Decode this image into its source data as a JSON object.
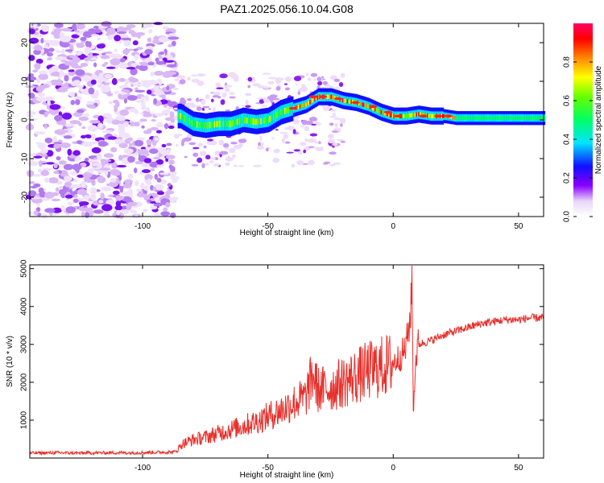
{
  "title": "PAZ1.2025.056.10.04.G08",
  "chart_data": [
    {
      "type": "heatmap",
      "xlabel": "Height of straight line (km)",
      "ylabel": "Frequency (Hz)",
      "xlim": [
        -145,
        60
      ],
      "ylim": [
        -25,
        25
      ],
      "xticks": [
        -100,
        -50,
        0,
        50
      ],
      "yticks": [
        -20,
        -10,
        0,
        10,
        20
      ],
      "colorbar": {
        "label": "Normalized spectral amplitude",
        "range": [
          0,
          1
        ],
        "ticks": [
          "0.0",
          "0.2",
          "0.4",
          "0.6",
          "0.8"
        ],
        "colormap": "rainbow (white-violet-blue-cyan-green-yellow-orange-red-magenta)"
      },
      "dominant_ridge": {
        "x": [
          -85,
          -80,
          -75,
          -70,
          -65,
          -60,
          -55,
          -50,
          -45,
          -40,
          -35,
          -30,
          -25,
          -20,
          -15,
          -10,
          -5,
          0,
          5,
          10,
          15,
          20,
          25,
          30,
          35,
          40,
          45,
          50,
          55,
          60
        ],
        "frequency": [
          1,
          -1,
          -1.5,
          -1,
          -1,
          0,
          -0.5,
          0,
          2,
          3,
          4,
          6,
          6,
          5,
          4.5,
          3.5,
          2,
          1,
          1,
          1.5,
          1,
          1,
          0.5,
          0.5,
          0.5,
          0.5,
          0.5,
          0.5,
          0.5,
          0.5
        ]
      },
      "noise_region_x": [
        -145,
        -87
      ]
    },
    {
      "type": "line",
      "xlabel": "Height of straight line (km)",
      "ylabel": "SNR (10 * v/v)",
      "xlim": [
        -145,
        60
      ],
      "ylim": [
        0,
        5100
      ],
      "xticks": [
        -100,
        -50,
        0,
        50
      ],
      "yticks": [
        1000,
        2000,
        3000,
        4000,
        5000
      ],
      "color": "#e8302c",
      "x": [
        -145,
        -135,
        -125,
        -115,
        -105,
        -95,
        -87,
        -84,
        -80,
        -75,
        -70,
        -65,
        -60,
        -55,
        -50,
        -45,
        -40,
        -35,
        -32,
        -30,
        -25,
        -20,
        -15,
        -10,
        -5,
        0,
        3,
        5,
        7,
        7.5,
        8,
        9,
        10,
        15,
        20,
        25,
        30,
        35,
        40,
        45,
        50,
        55,
        60
      ],
      "y": [
        130,
        140,
        130,
        140,
        140,
        150,
        160,
        380,
        480,
        550,
        650,
        750,
        850,
        950,
        1100,
        1250,
        1450,
        1600,
        2200,
        1800,
        1850,
        2000,
        2150,
        2300,
        2400,
        2500,
        2700,
        2900,
        3800,
        5050,
        1200,
        2600,
        3000,
        3100,
        3250,
        3350,
        3450,
        3550,
        3600,
        3650,
        3650,
        3700,
        3700
      ]
    }
  ]
}
